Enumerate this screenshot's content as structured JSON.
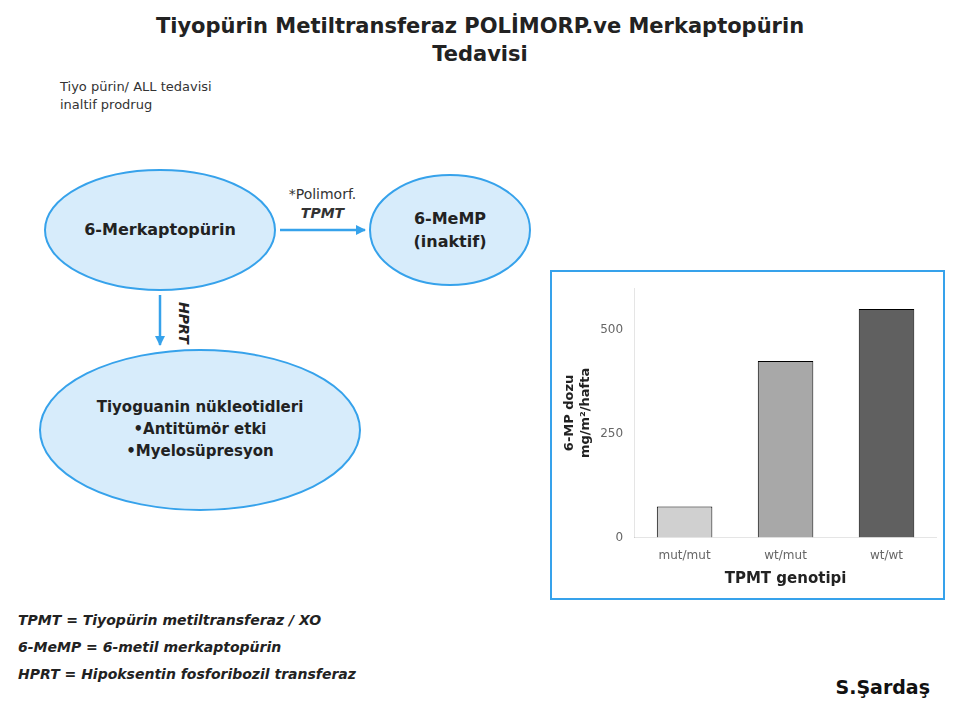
{
  "chart_data": {
    "type": "bar",
    "title": [
      "Tiyopürin Metiltransferaz POLİMORP.ve Merkaptopürin",
      "Tedavisi"
    ],
    "subtitle": "Tiyo pürin/ ALL tedavisi\ninaltif prodrug",
    "categories": [
      "mut/mut",
      "wt/mut",
      "wt/wt"
    ],
    "values": [
      75,
      425,
      550
    ],
    "colors": [
      "#d0d0d0",
      "#a8a8a8",
      "#606060"
    ],
    "x_label": "TPMT genotipi",
    "y_label": [
      "6-MP dozu",
      "mg/m²/hafta"
    ],
    "ylim": [
      0,
      600
    ],
    "yticks": [
      0,
      250,
      500
    ],
    "grid": false,
    "annotations": [
      "6-Merkaptopürin",
      "6-MeMP\n(inaktif)",
      "Tiyoguanin nükleotidleri\n•Antitümör etki\n•Myelosüpresyon",
      "*Polimorf.",
      "TPMT",
      "HPRT",
      "TPMT = Tiyopürin metiltransferaz / XO",
      "6-MeMP = 6-metil merkaptopürin",
      "HPRT = Hipoksentin fosforibozil transferaz",
      "S.Şardaş"
    ]
  }
}
